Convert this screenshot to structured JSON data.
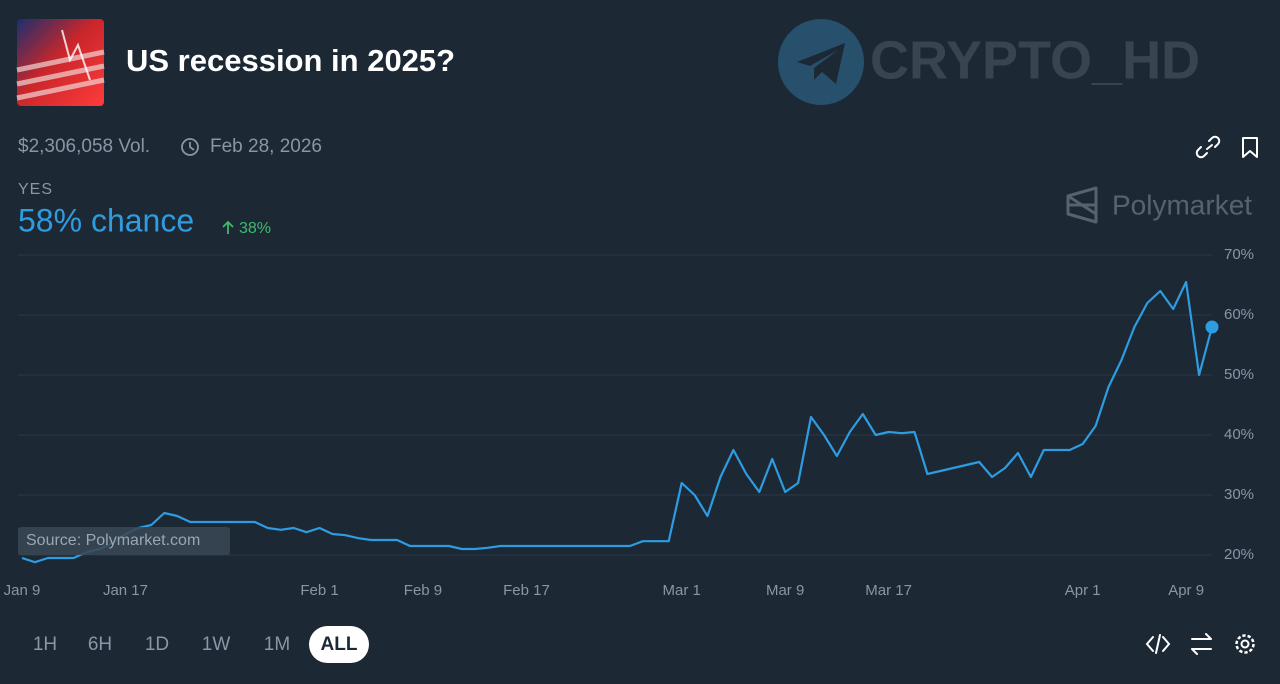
{
  "header": {
    "title": "US recession in 2025?",
    "volume": "$2,306,058 Vol.",
    "end_date": "Feb 28, 2026"
  },
  "watermark": "CRYPTO_HD",
  "brand": "Polymarket",
  "outcome": {
    "label": "YES",
    "chance": "58% chance",
    "change": "38%"
  },
  "chart_data": {
    "type": "line",
    "x": [
      "Jan 9",
      null,
      null,
      null,
      null,
      null,
      null,
      null,
      "Jan 17",
      null,
      null,
      null,
      null,
      null,
      null,
      null,
      null,
      null,
      null,
      null,
      null,
      null,
      null,
      "Feb 1",
      null,
      null,
      null,
      null,
      null,
      null,
      null,
      "Feb 9",
      null,
      null,
      null,
      null,
      null,
      null,
      null,
      "Feb 17",
      null,
      null,
      null,
      null,
      null,
      null,
      null,
      null,
      null,
      null,
      null,
      "Mar 1",
      null,
      null,
      null,
      null,
      null,
      null,
      null,
      "Mar 9",
      null,
      null,
      null,
      null,
      null,
      null,
      null,
      "Mar 17",
      null,
      null,
      null,
      null,
      null,
      null,
      null,
      null,
      null,
      null,
      null,
      null,
      null,
      null,
      "Apr 1",
      null,
      null,
      null,
      null,
      null,
      null,
      null,
      "Apr 9",
      null,
      null
    ],
    "values": [
      19.5,
      18.8,
      19.5,
      19.5,
      19.5,
      20.5,
      21,
      22,
      23.5,
      24.5,
      25,
      27,
      26.5,
      25.5,
      25.5,
      25.5,
      25.5,
      25.5,
      25.5,
      24.5,
      24.2,
      24.5,
      23.8,
      24.5,
      23.5,
      23.3,
      22.8,
      22.5,
      22.5,
      22.5,
      21.5,
      21.5,
      21.5,
      21.5,
      21,
      21,
      21.2,
      21.5,
      21.5,
      21.5,
      21.5,
      21.5,
      21.5,
      21.5,
      21.5,
      21.5,
      21.5,
      21.5,
      22.3,
      22.3,
      22.3,
      32,
      30,
      26.5,
      33,
      37.5,
      33.5,
      30.5,
      36,
      30.5,
      32,
      43,
      40,
      36.5,
      40.5,
      43.5,
      40,
      40.5,
      40.3,
      40.5,
      33.5,
      34,
      34.5,
      35,
      35.5,
      33,
      34.5,
      37,
      33,
      37.5,
      37.5,
      37.5,
      38.5,
      41.5,
      48,
      52.5,
      58,
      62,
      64,
      61,
      65.5,
      50,
      58
    ],
    "color": "#2e9ce0",
    "ylim": [
      18,
      71
    ],
    "yticks": [
      {
        "value": 20,
        "label": "20%"
      },
      {
        "value": 30,
        "label": "30%"
      },
      {
        "value": 40,
        "label": "40%"
      },
      {
        "value": 50,
        "label": "50%"
      },
      {
        "value": 60,
        "label": "60%"
      },
      {
        "value": 70,
        "label": "70%"
      }
    ],
    "grid": true
  },
  "source": "Source: Polymarket.com",
  "time_ranges": [
    "1H",
    "6H",
    "1D",
    "1W",
    "1M",
    "ALL"
  ],
  "selected_range": 5
}
